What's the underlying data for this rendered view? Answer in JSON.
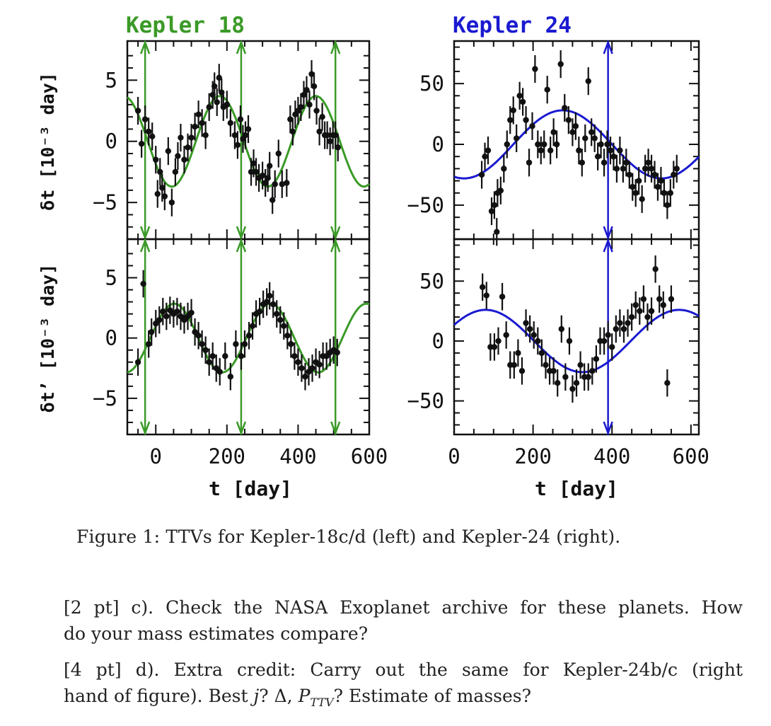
{
  "figure": {
    "caption": "Figure 1: TTVs for Kepler-18c/d (left) and Kepler-24 (right).",
    "colors": {
      "kepler18": "#3a9a27",
      "kepler24": "#1a1ad0",
      "points": "#111111"
    },
    "kepler18": {
      "title": "Kepler 18",
      "xlabel": "t [day]",
      "xticks": [
        "0",
        "200",
        "400",
        "600"
      ],
      "xlim": [
        -80,
        600
      ],
      "markers_t": [
        -30,
        240,
        505
      ],
      "top": {
        "ylabel": "δt [10⁻³ day]",
        "yticks": [
          "5",
          "0",
          "−5"
        ],
        "ylim": [
          -8,
          8.2
        ],
        "model": {
          "amplitude": 3.7,
          "period": 270,
          "peak_t": 180
        },
        "points": [
          [
            -50,
            2.5
          ],
          [
            -40,
            -0.2
          ],
          [
            -30,
            1.8
          ],
          [
            -20,
            0.8
          ],
          [
            -10,
            0.4
          ],
          [
            0,
            -1.5
          ],
          [
            5,
            -4.3
          ],
          [
            12,
            -2.5
          ],
          [
            18,
            -3.8
          ],
          [
            25,
            -4.5
          ],
          [
            35,
            -0.8
          ],
          [
            45,
            -5.0
          ],
          [
            55,
            -2.5
          ],
          [
            62,
            -1.2
          ],
          [
            70,
            0.3
          ],
          [
            80,
            -1.5
          ],
          [
            90,
            -0.5
          ],
          [
            100,
            0.3
          ],
          [
            110,
            1.2
          ],
          [
            120,
            2.2
          ],
          [
            130,
            1.5
          ],
          [
            140,
            0.5
          ],
          [
            150,
            2.8
          ],
          [
            160,
            3.8
          ],
          [
            165,
            4.5
          ],
          [
            172,
            3.2
          ],
          [
            178,
            5.2
          ],
          [
            185,
            4.0
          ],
          [
            190,
            2.8
          ],
          [
            200,
            3.0
          ],
          [
            210,
            1.5
          ],
          [
            222,
            0.5
          ],
          [
            230,
            -0.3
          ],
          [
            238,
            1.8
          ],
          [
            245,
            0.2
          ],
          [
            252,
            0.5
          ],
          [
            260,
            1.0
          ],
          [
            268,
            -2.5
          ],
          [
            275,
            -1.8
          ],
          [
            282,
            -2.5
          ],
          [
            290,
            -3.0
          ],
          [
            300,
            -2.8
          ],
          [
            308,
            -3.4
          ],
          [
            315,
            -3.0
          ],
          [
            320,
            -2.0
          ],
          [
            328,
            -4.8
          ],
          [
            335,
            -3.5
          ],
          [
            345,
            -1.0
          ],
          [
            355,
            -3.5
          ],
          [
            368,
            -3.4
          ],
          [
            378,
            1.8
          ],
          [
            385,
            0.8
          ],
          [
            392,
            2.2
          ],
          [
            400,
            2.5
          ],
          [
            408,
            2.8
          ],
          [
            416,
            3.8
          ],
          [
            424,
            4.2
          ],
          [
            432,
            3.0
          ],
          [
            438,
            5.5
          ],
          [
            445,
            4.5
          ],
          [
            452,
            2.5
          ],
          [
            460,
            0.8
          ],
          [
            468,
            2.0
          ],
          [
            475,
            0.5
          ],
          [
            482,
            0.5
          ],
          [
            490,
            0.0
          ],
          [
            498,
            0.5
          ],
          [
            505,
            0.5
          ],
          [
            512,
            -0.5
          ]
        ]
      },
      "bottom": {
        "ylabel": "δt’ [10⁻³ day]",
        "yticks": [
          "5",
          "0",
          "−5"
        ],
        "ylim": [
          -8,
          8.2
        ],
        "model": {
          "amplitude": 2.85,
          "period": 270,
          "peak_t": 52
        },
        "points": [
          [
            -50,
            -2.0
          ],
          [
            -35,
            4.5
          ],
          [
            -20,
            -0.5
          ],
          [
            -12,
            0.5
          ],
          [
            0,
            1.2
          ],
          [
            10,
            1.5
          ],
          [
            20,
            2.2
          ],
          [
            30,
            1.8
          ],
          [
            40,
            2.3
          ],
          [
            50,
            2.0
          ],
          [
            60,
            2.2
          ],
          [
            70,
            1.8
          ],
          [
            80,
            1.5
          ],
          [
            90,
            1.8
          ],
          [
            100,
            2.1
          ],
          [
            110,
            0.5
          ],
          [
            120,
            0.2
          ],
          [
            130,
            -0.5
          ],
          [
            140,
            -1.0
          ],
          [
            150,
            -2.0
          ],
          [
            160,
            -1.5
          ],
          [
            170,
            -2.5
          ],
          [
            180,
            -2.8
          ],
          [
            195,
            -1.5
          ],
          [
            210,
            -3.2
          ],
          [
            225,
            -0.5
          ],
          [
            240,
            -1.5
          ],
          [
            250,
            -0.5
          ],
          [
            262,
            0.2
          ],
          [
            272,
            1.0
          ],
          [
            282,
            2.0
          ],
          [
            292,
            2.2
          ],
          [
            302,
            2.8
          ],
          [
            312,
            3.0
          ],
          [
            320,
            3.5
          ],
          [
            330,
            2.8
          ],
          [
            340,
            2.0
          ],
          [
            350,
            1.5
          ],
          [
            360,
            1.0
          ],
          [
            370,
            0.2
          ],
          [
            380,
            -0.5
          ],
          [
            390,
            -1.5
          ],
          [
            400,
            -2.0
          ],
          [
            410,
            -2.5
          ],
          [
            420,
            -3.2
          ],
          [
            430,
            -2.8
          ],
          [
            440,
            -2.5
          ],
          [
            450,
            -2.0
          ],
          [
            460,
            -2.2
          ],
          [
            470,
            -1.5
          ],
          [
            480,
            -1.5
          ],
          [
            490,
            -1.2
          ],
          [
            500,
            -1.0
          ],
          [
            510,
            -1.2
          ]
        ]
      }
    },
    "kepler24": {
      "title": "Kepler 24",
      "xlabel": "t [day]",
      "xticks": [
        "0",
        "200",
        "400",
        "600"
      ],
      "xlim": [
        0,
        620
      ],
      "markers_t": [
        390
      ],
      "top": {
        "yticks": [
          "50",
          "0",
          "−50"
        ],
        "ylim": [
          -78,
          85
        ],
        "model": {
          "amplitude": 28,
          "period": 500,
          "peak_t": 275
        },
        "points": [
          [
            70,
            -25
          ],
          [
            78,
            -10
          ],
          [
            86,
            -5
          ],
          [
            95,
            -55
          ],
          [
            102,
            -50
          ],
          [
            110,
            -40
          ],
          [
            118,
            -38
          ],
          [
            126,
            -20
          ],
          [
            134,
            0
          ],
          [
            142,
            20
          ],
          [
            150,
            28
          ],
          [
            158,
            5
          ],
          [
            166,
            40
          ],
          [
            174,
            35
          ],
          [
            182,
            20
          ],
          [
            190,
            -15
          ],
          [
            198,
            15
          ],
          [
            205,
            62
          ],
          [
            212,
            0
          ],
          [
            220,
            -5
          ],
          [
            228,
            0
          ],
          [
            236,
            45
          ],
          [
            244,
            -5
          ],
          [
            252,
            10
          ],
          [
            260,
            0
          ],
          [
            270,
            66
          ],
          [
            280,
            30
          ],
          [
            290,
            20
          ],
          [
            300,
            10
          ],
          [
            308,
            15
          ],
          [
            316,
            -5
          ],
          [
            324,
            -15
          ],
          [
            332,
            5
          ],
          [
            340,
            52
          ],
          [
            348,
            10
          ],
          [
            356,
            5
          ],
          [
            364,
            -10
          ],
          [
            372,
            0
          ],
          [
            380,
            -15
          ],
          [
            388,
            0
          ],
          [
            396,
            -5
          ],
          [
            404,
            -10
          ],
          [
            412,
            -20
          ],
          [
            420,
            -5
          ],
          [
            428,
            -20
          ],
          [
            436,
            -15
          ],
          [
            444,
            -25
          ],
          [
            452,
            -35
          ],
          [
            460,
            -40
          ],
          [
            468,
            -30
          ],
          [
            476,
            -45
          ],
          [
            484,
            -20
          ],
          [
            492,
            -15
          ],
          [
            500,
            -20
          ],
          [
            508,
            -25
          ],
          [
            516,
            -35
          ],
          [
            524,
            -30
          ],
          [
            532,
            -40
          ],
          [
            540,
            -50
          ],
          [
            548,
            -40
          ],
          [
            556,
            -25
          ],
          [
            564,
            -20
          ],
          [
            108,
            -72
          ]
        ]
      },
      "bottom": {
        "yticks": [
          "50",
          "0",
          "−50"
        ],
        "ylim": [
          -78,
          85
        ],
        "model": {
          "amplitude": 26,
          "period": 490,
          "peak_t": 80
        },
        "points": [
          [
            72,
            45
          ],
          [
            82,
            38
          ],
          [
            92,
            -5
          ],
          [
            102,
            -5
          ],
          [
            112,
            0
          ],
          [
            122,
            37
          ],
          [
            132,
            5
          ],
          [
            142,
            -20
          ],
          [
            152,
            -20
          ],
          [
            162,
            -10
          ],
          [
            172,
            -25
          ],
          [
            182,
            15
          ],
          [
            192,
            10
          ],
          [
            202,
            5
          ],
          [
            212,
            0
          ],
          [
            222,
            -10
          ],
          [
            232,
            -20
          ],
          [
            242,
            -25
          ],
          [
            252,
            -25
          ],
          [
            262,
            -35
          ],
          [
            272,
            10
          ],
          [
            282,
            -30
          ],
          [
            292,
            0
          ],
          [
            300,
            -40
          ],
          [
            310,
            -35
          ],
          [
            320,
            -20
          ],
          [
            330,
            -30
          ],
          [
            340,
            -30
          ],
          [
            350,
            -25
          ],
          [
            360,
            -15
          ],
          [
            370,
            0
          ],
          [
            380,
            0
          ],
          [
            390,
            5
          ],
          [
            400,
            -5
          ],
          [
            410,
            10
          ],
          [
            420,
            15
          ],
          [
            430,
            10
          ],
          [
            440,
            15
          ],
          [
            450,
            20
          ],
          [
            460,
            30
          ],
          [
            470,
            25
          ],
          [
            480,
            35
          ],
          [
            490,
            20
          ],
          [
            500,
            25
          ],
          [
            510,
            60
          ],
          [
            520,
            35
          ],
          [
            530,
            30
          ],
          [
            540,
            -35
          ],
          [
            550,
            35
          ]
        ]
      }
    }
  },
  "questions": {
    "c_line1": "[2 pt] c). Check the NASA Exoplanet archive for these planets. How",
    "c_line2": "do your mass estimates compare?",
    "d_line1": "[4 pt] d). Extra credit: Carry out the same for Kepler-24b/c (right",
    "d_line2_a": "hand of figure). Best ",
    "d_var_j": "j",
    "d_line2_b": "? Δ, ",
    "d_var_P": "P",
    "d_sub_TTV": "TTV",
    "d_line2_c": "? Estimate of masses?"
  }
}
